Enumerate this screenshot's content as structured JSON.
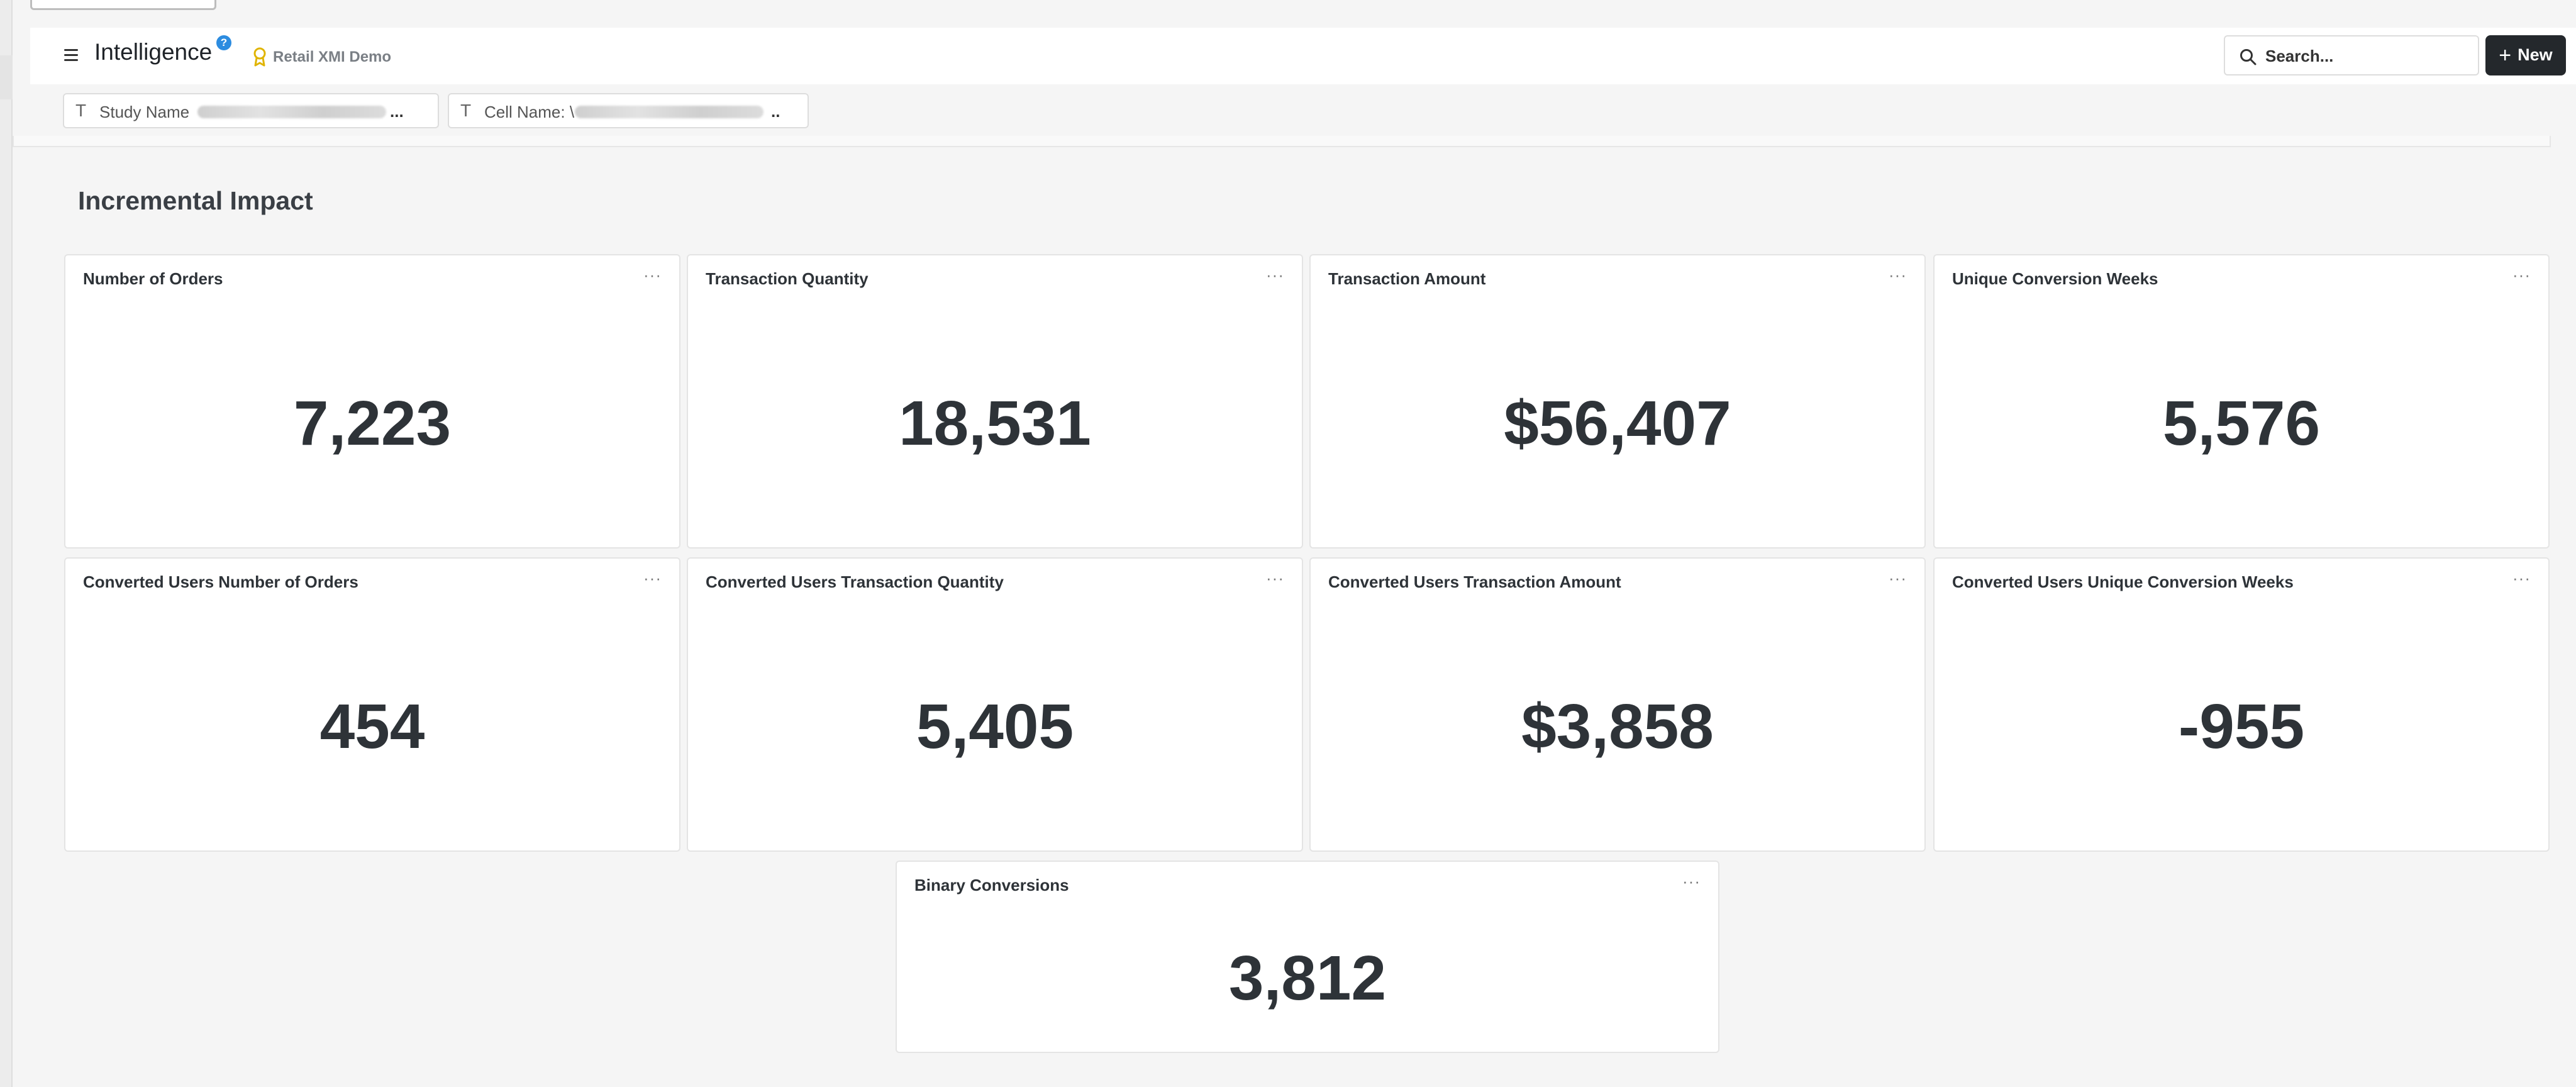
{
  "header": {
    "app_title": "Intelligence",
    "help_badge": "?",
    "org_name": "Retail XMI Demo",
    "search_placeholder": "Search...",
    "new_button_label": "New",
    "colors": {
      "new_button_bg": "#24282c",
      "help_badge_bg": "#2c8ce0",
      "org_icon": "#e0b400"
    }
  },
  "filters": [
    {
      "icon": "text-type-icon",
      "glyph": "T",
      "label": "Study Name",
      "ellipsis": "..."
    },
    {
      "icon": "text-type-icon",
      "glyph": "T",
      "label": "Cell Name: \\",
      "ellipsis": ".."
    }
  ],
  "section": {
    "title": "Incremental Impact"
  },
  "cards": [
    {
      "title": "Number of Orders",
      "value": "7,223"
    },
    {
      "title": "Transaction Quantity",
      "value": "18,531"
    },
    {
      "title": "Transaction Amount",
      "value": "$56,407"
    },
    {
      "title": "Unique Conversion Weeks",
      "value": "5,576"
    },
    {
      "title": "Converted Users Number of Orders",
      "value": "454"
    },
    {
      "title": "Converted Users Transaction Quantity",
      "value": "5,405"
    },
    {
      "title": "Converted Users Transaction Amount",
      "value": "$3,858"
    },
    {
      "title": "Converted Users Unique Conversion Weeks",
      "value": "-955"
    },
    {
      "title": "Binary Conversions",
      "value": "3,812"
    }
  ],
  "card_menu_glyph": "···"
}
